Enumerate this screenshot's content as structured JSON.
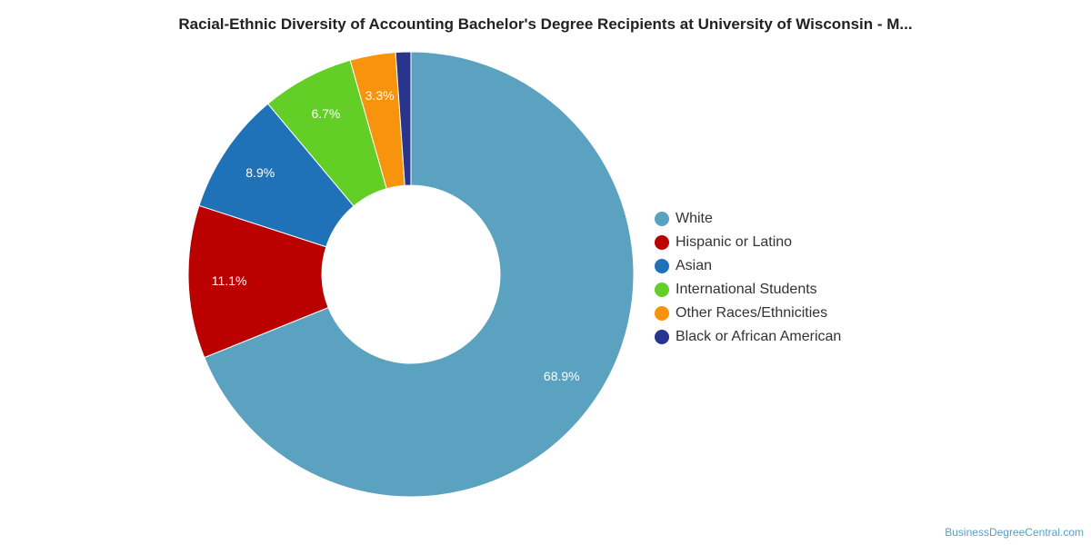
{
  "chart_data": {
    "type": "pie",
    "title": "Racial-Ethnic Diversity of Accounting Bachelor's Degree Recipients at University of Wisconsin - M...",
    "donut": true,
    "legend_position": "right",
    "series": [
      {
        "name": "White",
        "value": 68.9,
        "label": "68.9%",
        "color": "#5ba1c0"
      },
      {
        "name": "Hispanic or Latino",
        "value": 11.1,
        "label": "11.1%",
        "color": "#bb0000"
      },
      {
        "name": "Asian",
        "value": 8.9,
        "label": "8.9%",
        "color": "#1f72b8"
      },
      {
        "name": "International Students",
        "value": 6.7,
        "label": "6.7%",
        "color": "#62ce26"
      },
      {
        "name": "Other Races/Ethnicities",
        "value": 3.3,
        "label": "3.3%",
        "color": "#f7930d"
      },
      {
        "name": "Black or African American",
        "value": 1.1,
        "label": "",
        "color": "#28358c"
      }
    ]
  },
  "watermark": "BusinessDegreeCentral.com"
}
